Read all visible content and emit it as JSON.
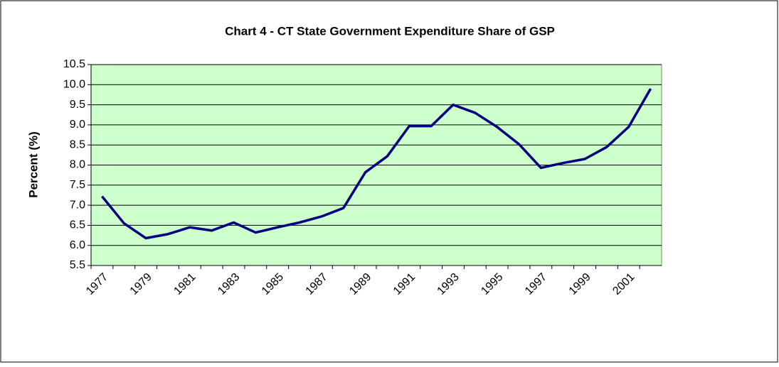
{
  "chart_data": {
    "type": "line",
    "title": "Chart 4 - CT State Government Expenditure Share of GSP",
    "y_label": "Percent (%)",
    "categories": [
      "1977",
      null,
      "1979",
      null,
      "1981",
      null,
      "1983",
      null,
      "1985",
      null,
      "1987",
      null,
      "1989",
      null,
      "1991",
      null,
      "1993",
      null,
      "1995",
      null,
      "1997",
      null,
      "1999",
      null,
      "2001",
      null
    ],
    "series": [
      {
        "color": "#000080",
        "values": [
          7.22,
          6.55,
          6.18,
          6.28,
          6.45,
          6.37,
          6.57,
          6.32,
          6.45,
          6.57,
          6.72,
          6.93,
          7.82,
          8.22,
          8.97,
          8.97,
          9.5,
          9.3,
          8.95,
          8.52,
          7.93,
          8.05,
          8.15,
          8.45,
          8.95,
          9.9
        ]
      }
    ],
    "ylim": [
      5.5,
      10.5
    ],
    "yticks": [
      5.5,
      {
        "value": 6,
        "label": "6.0"
      },
      6.5,
      {
        "value": 7,
        "label": "7.0"
      },
      7.5,
      {
        "value": 8,
        "label": "8.0"
      },
      8.5,
      {
        "value": 9,
        "label": "9.0"
      },
      9.5,
      {
        "value": 10,
        "label": "10.0"
      },
      10.5
    ],
    "grid": true,
    "plot_background": "#ccffcc"
  }
}
